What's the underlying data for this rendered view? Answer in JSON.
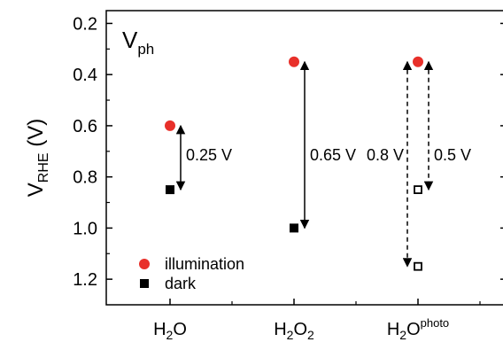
{
  "chart_data": {
    "type": "scatter",
    "title": "V",
    "title_sub": "ph",
    "ylabel": "V",
    "ylabel_sub": "RHE",
    "ylabel_unit": " (V)",
    "ylim": [
      0.15,
      1.3
    ],
    "y_inverted": true,
    "yticks": [
      0.2,
      0.4,
      0.6,
      0.8,
      1.0,
      1.2
    ],
    "ytick_labels": [
      "0.2",
      "0.4",
      "0.6",
      "0.8",
      "1.0",
      "1.2"
    ],
    "categories": [
      {
        "base": "H",
        "sub": "2",
        "tail": "O",
        "sup": ""
      },
      {
        "base": "H",
        "sub": "2",
        "tail": "O",
        "sub2": "2",
        "sup": ""
      },
      {
        "base": "H",
        "sub": "2",
        "tail": "O",
        "sup": "photo"
      }
    ],
    "series": [
      {
        "name": "illumination",
        "marker": "circle",
        "color": "#e8302a",
        "values": [
          0.6,
          0.35,
          0.35
        ]
      },
      {
        "name": "dark",
        "marker": "square",
        "color": "#000000",
        "values": [
          0.85,
          1.0,
          null
        ]
      },
      {
        "name": "",
        "marker": "open-square",
        "color": "#000000",
        "values": [
          null,
          null,
          1.15
        ]
      },
      {
        "name": "",
        "marker": "open-square",
        "color": "#000000",
        "values": [
          null,
          null,
          0.85
        ]
      }
    ],
    "photovoltages": [
      {
        "category": 0,
        "from": 0.6,
        "to": 0.85,
        "label": "0.25 V",
        "style": "solid",
        "side": "right"
      },
      {
        "category": 1,
        "from": 0.35,
        "to": 1.0,
        "label": "0.65 V",
        "style": "solid",
        "side": "right"
      },
      {
        "category": 2,
        "from": 0.35,
        "to": 1.15,
        "label": "0.8 V",
        "style": "dashed",
        "side": "left"
      },
      {
        "category": 2,
        "from": 0.35,
        "to": 0.85,
        "label": "0.5 V",
        "style": "dashed",
        "side": "right"
      }
    ],
    "legend": {
      "placement": "bottom-left",
      "entries": [
        {
          "label": "illumination",
          "marker": "circle",
          "color": "#e8302a"
        },
        {
          "label": "dark",
          "marker": "square",
          "color": "#000000"
        }
      ]
    },
    "grid": false
  }
}
